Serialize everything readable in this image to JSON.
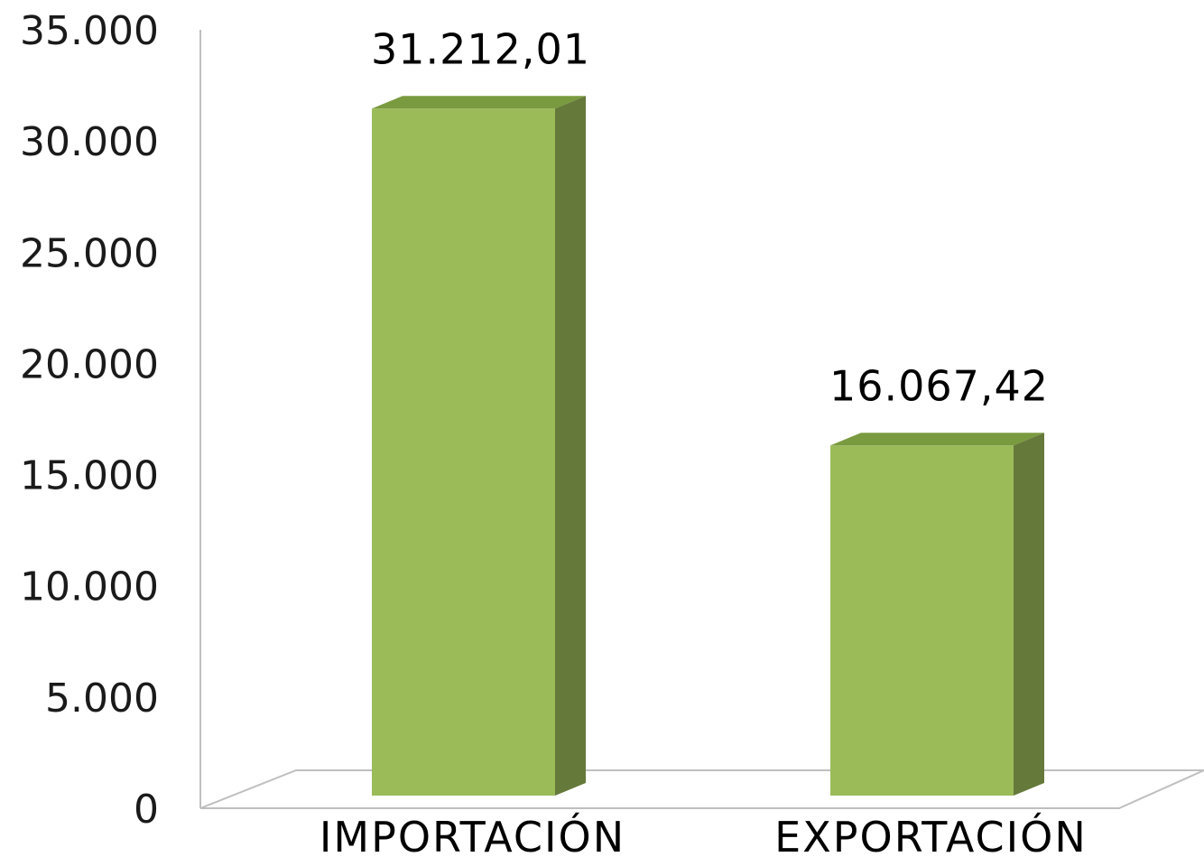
{
  "chart_data": {
    "type": "bar",
    "style": "3d-column",
    "categories": [
      "IMPORTACIÓN",
      "EXPORTACIÓN"
    ],
    "values": [
      31212.01,
      16067.42
    ],
    "data_labels": [
      "31.212,01",
      "16.067,42"
    ],
    "title": "",
    "xlabel": "",
    "ylabel": "",
    "ylim": [
      0,
      35000
    ],
    "yticks": [
      0,
      5000,
      10000,
      15000,
      20000,
      25000,
      30000,
      35000
    ],
    "ytick_labels": [
      "0",
      "5.000",
      "10.000",
      "15.000",
      "20.000",
      "25.000",
      "30.000",
      "35.000"
    ],
    "grid": false,
    "legend": "none",
    "colors": {
      "bar_front": "#9bbb59",
      "bar_top": "#7a9a3f",
      "bar_side": "#65793a",
      "axis": "#bfbfbf"
    }
  }
}
